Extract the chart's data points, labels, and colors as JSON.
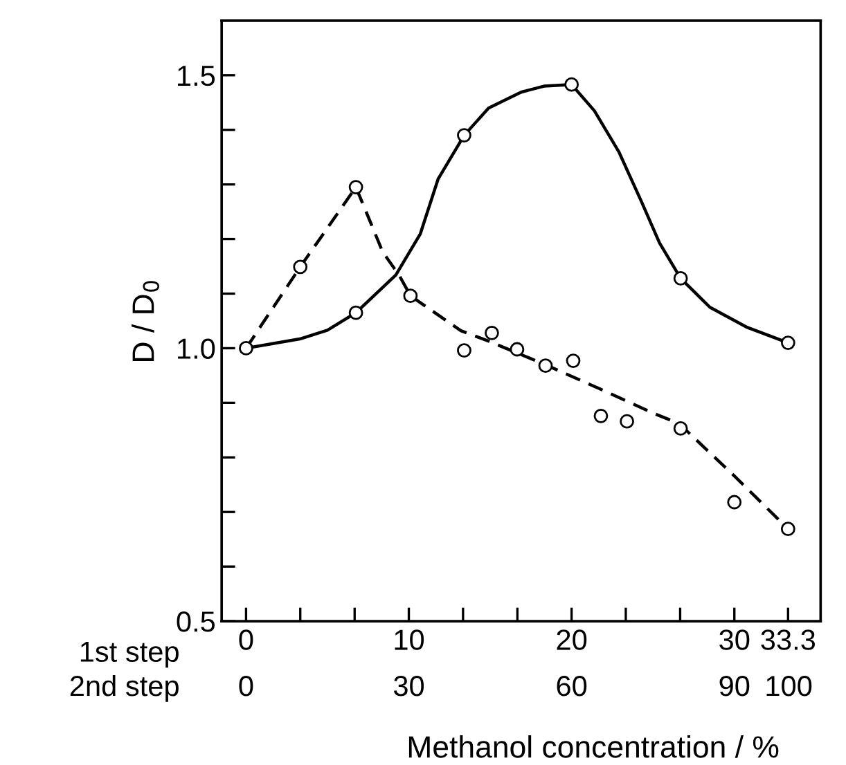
{
  "chart_data": {
    "type": "line",
    "xlabel": "Methanol concentration / %",
    "ylabel": "D / D$_{0}$",
    "xlim": [
      -1.5,
      35.3
    ],
    "xticks": [
      0,
      {
        "value": 3.33,
        "label": null
      },
      {
        "value": 6.67,
        "label": null
      },
      10,
      {
        "value": 13.33,
        "label": null
      },
      {
        "value": 16.67,
        "label": null
      },
      20,
      {
        "value": 23.33,
        "label": null
      },
      {
        "value": 26.67,
        "label": null
      },
      30,
      33.3
    ],
    "x2lim": [
      -4.5,
      105.9
    ],
    "x2ticks": [
      0,
      30,
      60,
      90,
      100
    ],
    "ylim": [
      0.5,
      1.6
    ],
    "yticks": [
      {
        "value": 0.5,
        "label": "0.5"
      },
      {
        "value": 0.6,
        "label": null
      },
      {
        "value": 0.7,
        "label": null
      },
      {
        "value": 0.8,
        "label": null
      },
      {
        "value": 0.9,
        "label": null
      },
      {
        "value": 1.0,
        "label": "1.0"
      },
      {
        "value": 1.1,
        "label": null
      },
      {
        "value": 1.2,
        "label": null
      },
      {
        "value": 1.3,
        "label": null
      },
      {
        "value": 1.4,
        "label": null
      },
      {
        "value": 1.5,
        "label": "1.5"
      }
    ],
    "annotations": [
      "1st step",
      "2nd step"
    ],
    "grid": false,
    "legend": false,
    "series": [
      {
        "color": "#000000",
        "line_style": "solid",
        "x": [
          0,
          3.3,
          5.0,
          6.75,
          9.2,
          10.7,
          11.8,
          13.4,
          14.9,
          16.9,
          18.3,
          20.0,
          21.4,
          22.9,
          24.3,
          25.4,
          26.7,
          28.5,
          30.8,
          33.3
        ],
        "values": [
          1.0,
          1.017,
          1.033,
          1.065,
          1.134,
          1.209,
          1.31,
          1.39,
          1.44,
          1.469,
          1.48,
          1.483,
          1.435,
          1.36,
          1.268,
          1.193,
          1.128,
          1.075,
          1.038,
          1.01
        ]
      },
      {
        "type": "scatter",
        "color": "#000000",
        "marker": "circle",
        "x": [
          6.75,
          13.4,
          20.0,
          26.7,
          33.3
        ],
        "values": [
          1.065,
          1.39,
          1.483,
          1.128,
          1.01
        ]
      },
      {
        "color": "#000000",
        "line_style": "dashed",
        "x": [
          0,
          3.33,
          6.75,
          8.4,
          9.4,
          10.1,
          13.2,
          14.9,
          18.3,
          21.7,
          25.1,
          26.6,
          30.0,
          33.3
        ],
        "values": [
          1.0,
          1.149,
          1.295,
          1.176,
          1.134,
          1.096,
          1.032,
          1.013,
          0.971,
          0.926,
          0.88,
          0.862,
          0.766,
          0.669
        ]
      },
      {
        "type": "scatter",
        "color": "#000000",
        "marker": "circle",
        "x": [
          0,
          3.33,
          6.75,
          10.1,
          13.4,
          15.1,
          16.65,
          18.4,
          20.1,
          21.8,
          23.4,
          26.7,
          30.0,
          33.3
        ],
        "values": [
          1.0,
          1.149,
          1.295,
          1.096,
          0.996,
          1.028,
          0.998,
          0.968,
          0.977,
          0.876,
          0.866,
          0.853,
          0.718,
          0.669
        ]
      }
    ]
  }
}
